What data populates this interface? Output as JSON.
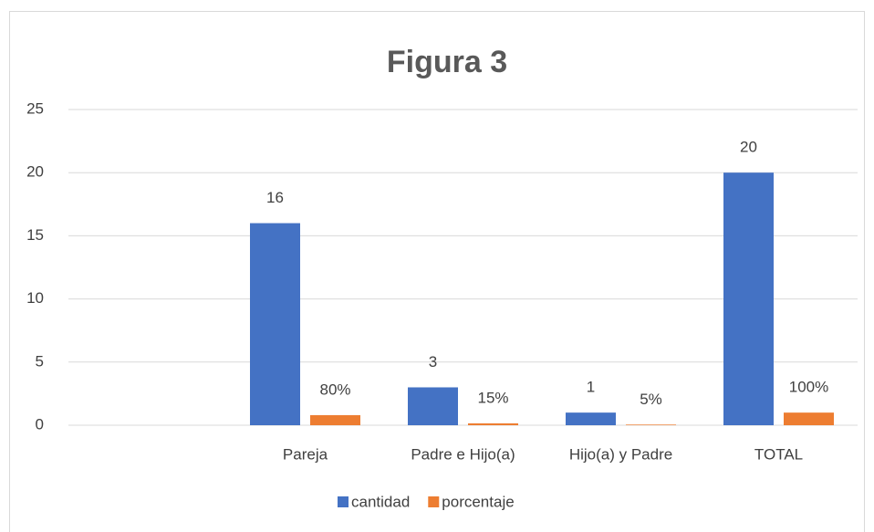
{
  "chart_data": {
    "type": "bar",
    "title": "Figura 3",
    "categories": [
      null,
      "Pareja",
      "Padre e Hijo(a)",
      "Hijo(a) y Padre",
      "TOTAL"
    ],
    "series": [
      {
        "name": "cantidad",
        "color": "#4472c4",
        "values": [
          null,
          16,
          3,
          1,
          20
        ]
      },
      {
        "name": "porcentaje",
        "color": "#ed7d31",
        "values": [
          null,
          0.8,
          0.15,
          0.05,
          1
        ],
        "value_labels": [
          null,
          "80%",
          "15%",
          "5%",
          "100%"
        ]
      }
    ],
    "ylim": [
      0,
      25
    ],
    "yticks": [
      0,
      5,
      10,
      15,
      20,
      25
    ],
    "grid": true,
    "legend": "bottom"
  }
}
